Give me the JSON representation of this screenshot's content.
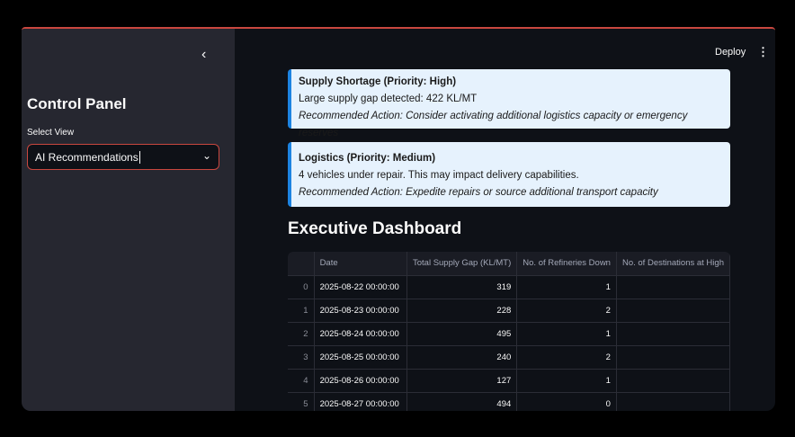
{
  "sidebar": {
    "title": "Control Panel",
    "select_label": "Select View",
    "select_value": "AI Recommendations"
  },
  "header": {
    "deploy": "Deploy"
  },
  "alerts": [
    {
      "title": "Supply Shortage (Priority: High)",
      "message": "Large supply gap detected: 422 KL/MT",
      "action": "Recommended Action: Consider activating additional logistics capacity or emergency reserves"
    },
    {
      "title": "Logistics (Priority: Medium)",
      "message": "4 vehicles under repair. This may impact delivery capabilities.",
      "action": "Recommended Action: Expedite repairs or source additional transport capacity"
    }
  ],
  "dashboard": {
    "title": "Executive Dashboard",
    "columns": [
      "",
      "Date",
      "Total Supply Gap (KL/MT)",
      "No. of Refineries Down",
      "No. of Destinations at High"
    ],
    "rows": [
      [
        "0",
        "2025-08-22 00:00:00",
        "319",
        "1",
        ""
      ],
      [
        "1",
        "2025-08-23 00:00:00",
        "228",
        "2",
        ""
      ],
      [
        "2",
        "2025-08-24 00:00:00",
        "495",
        "1",
        ""
      ],
      [
        "3",
        "2025-08-25 00:00:00",
        "240",
        "2",
        ""
      ],
      [
        "4",
        "2025-08-26 00:00:00",
        "127",
        "1",
        ""
      ],
      [
        "5",
        "2025-08-27 00:00:00",
        "494",
        "0",
        ""
      ]
    ]
  }
}
